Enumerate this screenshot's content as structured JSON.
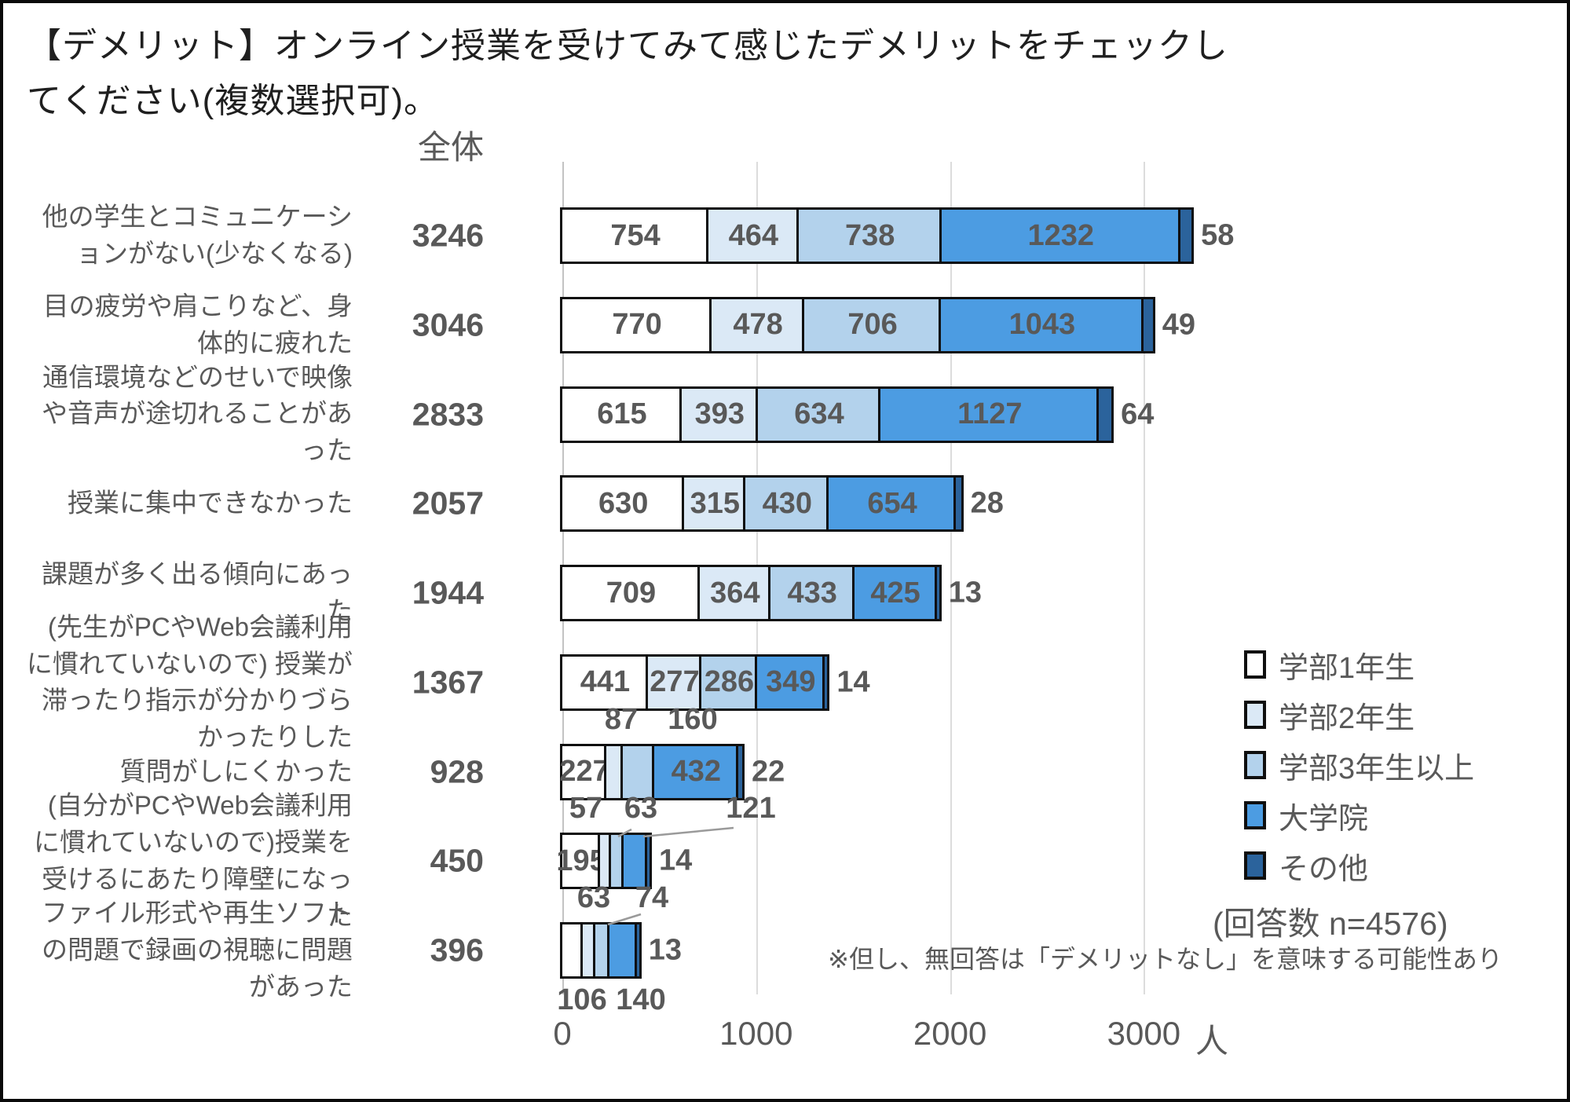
{
  "page": {
    "title": "【デメリット】オンライン授業を受けてみて感じたデメリットをチェックしてください(複数選択可)。"
  },
  "chart": {
    "total_column_header": "全体",
    "legend_note": "(回答数 n=4576)",
    "footnote": "※但し、無回答は「デメリットなし」を意味する可能性あり",
    "axis_unit": "人"
  },
  "colors": {
    "segment_fills": [
      "#ffffff",
      "#dbe9f6",
      "#b3d2ec",
      "#4c9ce2",
      "#2b639c"
    ],
    "bar_border": "#0f0f0f",
    "text": "#595959",
    "gridline": "#dcdcdc",
    "axisline": "#c3c3c3"
  },
  "chart_data": {
    "type": "bar",
    "orientation": "horizontal",
    "stacked": true,
    "title": "【デメリット】オンライン授業を受けてみて感じたデメリットをチェックしてください(複数選択可)。",
    "categories": [
      "他の学生とコミュニケーションがない(少なくなる)",
      "目の疲労や肩こりなど、身体的に疲れた",
      "通信環境などのせいで映像や音声が途切れることがあった",
      "授業に集中できなかった",
      "課題が多く出る傾向にあった",
      "(先生がPCやWeb会議利用に慣れていないので) 授業が滞ったり指示が分かりづらかったりした",
      "質問がしにくかった",
      "(自分がPCやWeb会議利用に慣れていないので)授業を受けるにあたり障壁になった",
      "ファイル形式や再生ソフトの問題で録画の視聴に問題があった"
    ],
    "totals": [
      3246,
      3046,
      2833,
      2057,
      1944,
      1367,
      928,
      450,
      396
    ],
    "series": [
      {
        "name": "学部1年生",
        "values": [
          754,
          770,
          615,
          630,
          709,
          441,
          227,
          195,
          106
        ]
      },
      {
        "name": "学部2年生",
        "values": [
          464,
          478,
          393,
          315,
          364,
          277,
          87,
          57,
          63
        ]
      },
      {
        "name": "学部3年生以上",
        "values": [
          738,
          706,
          634,
          430,
          433,
          286,
          160,
          63,
          74
        ]
      },
      {
        "name": "大学院",
        "values": [
          1232,
          1043,
          1127,
          654,
          425,
          349,
          432,
          121,
          140
        ]
      },
      {
        "name": "その他",
        "values": [
          58,
          49,
          64,
          28,
          13,
          14,
          22,
          14,
          13
        ]
      }
    ],
    "x_ticks": [
      0,
      1000,
      2000,
      3000
    ],
    "xlim": [
      0,
      3300
    ],
    "grid": true,
    "legend_position": "right-bottom"
  }
}
